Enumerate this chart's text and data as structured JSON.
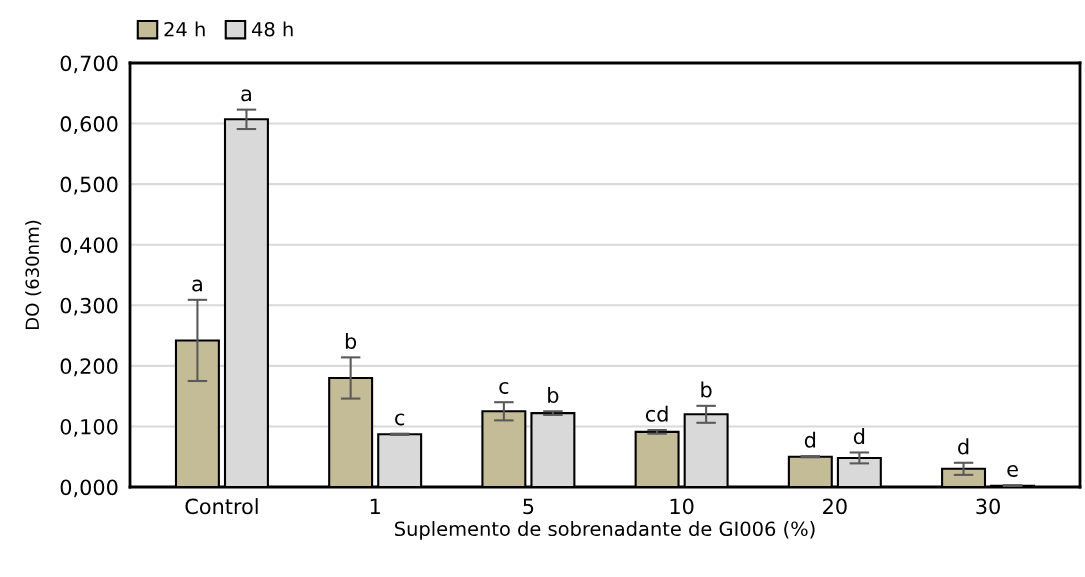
{
  "chart_data": {
    "type": "bar",
    "xlabel": "Suplemento de sobrenadante de GI006 (%)",
    "ylabel": "DO (630nm)",
    "categories": [
      "Control",
      "1",
      "5",
      "10",
      "20",
      "30"
    ],
    "series": [
      {
        "name": "24 h",
        "color": "#c4bc96",
        "values": [
          0.242,
          0.18,
          0.125,
          0.091,
          0.05,
          0.03
        ],
        "errors": [
          0.067,
          0.034,
          0.015,
          0.003,
          0.001,
          0.01
        ],
        "value_labels": [
          "a",
          "b",
          "c",
          "cd",
          "d",
          "d"
        ]
      },
      {
        "name": "48 h",
        "color": "#d9d9d9",
        "values": [
          0.607,
          0.087,
          0.122,
          0.12,
          0.048,
          0.002
        ],
        "errors": [
          0.016,
          0.001,
          0.003,
          0.014,
          0.009,
          0.001
        ],
        "value_labels": [
          "a",
          "c",
          "b",
          "b",
          "d",
          "e"
        ]
      }
    ],
    "ylim": [
      0,
      0.7
    ],
    "yticks": [
      {
        "value": 0,
        "label": "0,000"
      },
      {
        "value": 0.1,
        "label": "0,100"
      },
      {
        "value": 0.2,
        "label": "0,200"
      },
      {
        "value": 0.3,
        "label": "0,300"
      },
      {
        "value": 0.4,
        "label": "0,400"
      },
      {
        "value": 0.5,
        "label": "0,500"
      },
      {
        "value": 0.6,
        "label": "0,600"
      },
      {
        "value": 0.7,
        "label": "0,700"
      }
    ],
    "grid": "y",
    "legend": "top left"
  }
}
